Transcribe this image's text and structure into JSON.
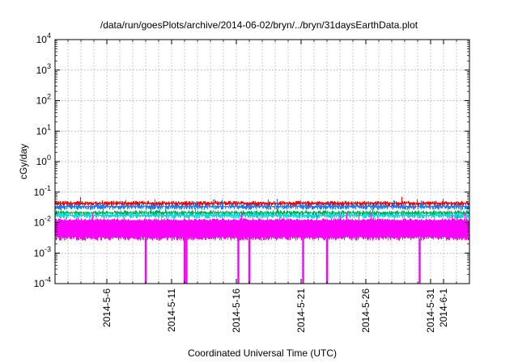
{
  "chart_data": {
    "type": "area",
    "title": "/data/run/goesPlots/archive/2014-06-02/bryn/../bryn/31daysEarthData.plot",
    "xlabel": "Coordinated Universal Time (UTC)",
    "ylabel": "cGy/day",
    "y_scale": "log",
    "ylim": [
      0.0001,
      10000
    ],
    "y_ticks": [
      {
        "value": 0.0001,
        "base": "10",
        "exp": "-4"
      },
      {
        "value": 0.001,
        "base": "10",
        "exp": "-3"
      },
      {
        "value": 0.01,
        "base": "10",
        "exp": "-2"
      },
      {
        "value": 0.1,
        "base": "10",
        "exp": "-1"
      },
      {
        "value": 1,
        "base": "10",
        "exp": "0"
      },
      {
        "value": 10,
        "base": "10",
        "exp": "1"
      },
      {
        "value": 100,
        "base": "10",
        "exp": "2"
      },
      {
        "value": 1000,
        "base": "10",
        "exp": "3"
      },
      {
        "value": 10000,
        "base": "10",
        "exp": "4"
      }
    ],
    "xlim": [
      "2014-05-02",
      "2014-06-03"
    ],
    "x_ticks": [
      "2014-5-6",
      "2014-5-11",
      "2014-5-16",
      "2014-5-21",
      "2014-5-26",
      "2014-5-31",
      "2014-6-1"
    ],
    "grid": true,
    "series": [
      {
        "color": "#ff0000",
        "typical": 0.045,
        "low": 0.03,
        "high": 0.07
      },
      {
        "color": "#1e7bff",
        "typical": 0.035,
        "low": 0.025,
        "high": 0.06
      },
      {
        "color": "#00b050",
        "typical": 0.022,
        "low": 0.015,
        "high": 0.03
      },
      {
        "color": "#00dddd",
        "typical": 0.018,
        "low": 0.012,
        "high": 0.025
      },
      {
        "color": "#ff00ff",
        "typical": 0.012,
        "low": 0.003,
        "high": 0.02
      }
    ],
    "dropouts": [
      "2014-05-09",
      "2014-05-12",
      "2014-05-12",
      "2014-05-16",
      "2014-05-17",
      "2014-05-21",
      "2014-05-23",
      "2014-05-30"
    ]
  }
}
